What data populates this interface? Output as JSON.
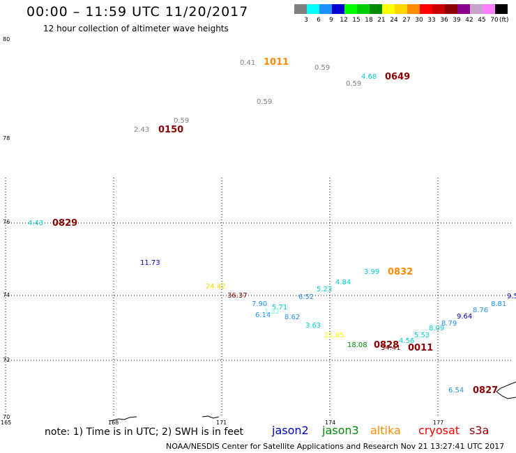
{
  "header": {
    "title": "00:00 – 11:59 UTC 11/20/2017",
    "subtitle": "12 hour collection of altimeter wave heights"
  },
  "legend": {
    "unit": "(ft)",
    "swatches": [
      {
        "label": "3",
        "color": "#7f7f7f"
      },
      {
        "label": "6",
        "color": "#00ffff"
      },
      {
        "label": "9",
        "color": "#1e90ff"
      },
      {
        "label": "12",
        "color": "#0000cd"
      },
      {
        "label": "15",
        "color": "#00ff00"
      },
      {
        "label": "18",
        "color": "#00cd00"
      },
      {
        "label": "21",
        "color": "#008b00"
      },
      {
        "label": "24",
        "color": "#ffff00"
      },
      {
        "label": "27",
        "color": "#ffd700"
      },
      {
        "label": "30",
        "color": "#ff8c00"
      },
      {
        "label": "33",
        "color": "#ff0000"
      },
      {
        "label": "36",
        "color": "#cd0000"
      },
      {
        "label": "39",
        "color": "#8b0000"
      },
      {
        "label": "42",
        "color": "#8b008b"
      },
      {
        "label": "45",
        "color": "#c8a2c8"
      },
      {
        "label": "70",
        "color": "#ff7fff"
      },
      {
        "label": "",
        "color": "#000000"
      }
    ]
  },
  "axes": {
    "lat_labels": [
      "80",
      "78",
      "76",
      "74",
      "72",
      "70"
    ],
    "lon_labels": [
      "165",
      "168",
      "171",
      "174",
      "177"
    ]
  },
  "measurements": [
    {
      "text": "0.41",
      "color": "#7f7f7f"
    },
    {
      "text": "1011",
      "color": "#ff8c00",
      "time": true
    },
    {
      "text": "0.59",
      "color": "#7f7f7f"
    },
    {
      "text": "0.59",
      "color": "#7f7f7f"
    },
    {
      "text": "4.68",
      "color": "#00cdcd"
    },
    {
      "text": "0649",
      "color": "#8b0000",
      "time": true
    },
    {
      "text": "0.59",
      "color": "#7f7f7f"
    },
    {
      "text": "0.59",
      "color": "#7f7f7f"
    },
    {
      "text": "2.43",
      "color": "#7f7f7f"
    },
    {
      "text": "0150",
      "color": "#8b0000",
      "time": true
    },
    {
      "text": "4.43",
      "color": "#00cdcd"
    },
    {
      "text": "0829",
      "color": "#8b0000",
      "time": true
    },
    {
      "text": "11.73",
      "color": "#0000cd"
    },
    {
      "text": "3.99",
      "color": "#00cdcd"
    },
    {
      "text": "0832",
      "color": "#ff8c00",
      "time": true
    },
    {
      "text": "24.42",
      "color": "#ffd700"
    },
    {
      "text": "36.37",
      "color": "#8b0000"
    },
    {
      "text": "4.84",
      "color": "#00cdcd"
    },
    {
      "text": "5.23",
      "color": "#00cdcd"
    },
    {
      "text": "6.52",
      "color": "#1e90ff"
    },
    {
      "text": "7.90",
      "color": "#1e90ff"
    },
    {
      "text": "5.71",
      "color": "#00cdcd"
    },
    {
      "text": "1.32",
      "color": "#7fffd4"
    },
    {
      "text": "6.14",
      "color": "#1e90ff"
    },
    {
      "text": "8.62",
      "color": "#1e90ff"
    },
    {
      "text": "3.63",
      "color": "#00cdcd"
    },
    {
      "text": "21.85",
      "color": "#ffff00"
    },
    {
      "text": "18.08",
      "color": "#008b00"
    },
    {
      "text": "0828",
      "color": "#8b0000",
      "time": true
    },
    {
      "text": "34.41",
      "color": "#8b0000"
    },
    {
      "text": "0011",
      "color": "#8b0000",
      "time": true
    },
    {
      "text": "4.56",
      "color": "#00cdcd"
    },
    {
      "text": "5.53",
      "color": "#00cdcd"
    },
    {
      "text": "8.09",
      "color": "#00cdcd"
    },
    {
      "text": "8.79",
      "color": "#1e90ff"
    },
    {
      "text": "9.64",
      "color": "#0000cd"
    },
    {
      "text": "8.76",
      "color": "#1e90ff"
    },
    {
      "text": "8.81",
      "color": "#1e90ff"
    },
    {
      "text": "9.5",
      "color": "#0000cd"
    },
    {
      "text": "6.54",
      "color": "#1e90ff"
    },
    {
      "text": "0827",
      "color": "#8b0000",
      "time": true
    }
  ],
  "satellites": [
    {
      "name": "jason2",
      "color": "#0000cd"
    },
    {
      "name": "jason3",
      "color": "#008b00"
    },
    {
      "name": "altika",
      "color": "#ff8c00"
    },
    {
      "name": "cryosat",
      "color": "#ff0000"
    },
    {
      "name": "s3a",
      "color": "#8b0000"
    }
  ],
  "footer": {
    "note": "note: 1) Time is in UTC; 2) SWH is in feet",
    "credit": "NOAA/NESDIS Center for Satellite Applications and Research     Nov 21 13:27:41 UTC 2017"
  }
}
